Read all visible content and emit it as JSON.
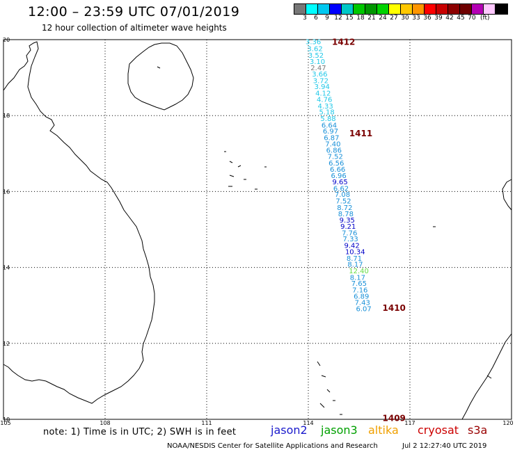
{
  "title": "12:00 – 23:59 UTC 07/01/2019",
  "subtitle": "12 hour collection of altimeter wave heights",
  "legend": {
    "colors": [
      "#777777",
      "#00ffff",
      "#00c8f0",
      "#0000ff",
      "#00c8c8",
      "#00c800",
      "#009600",
      "#00d200",
      "#ffff00",
      "#ffc800",
      "#ff9600",
      "#ff0000",
      "#c80000",
      "#8c0000",
      "#6e0000",
      "#b400b4",
      "#ffc8ff",
      "#000000"
    ],
    "labels": [
      "3",
      "6",
      "9",
      "12",
      "15",
      "18",
      "21",
      "24",
      "27",
      "30",
      "33",
      "36",
      "39",
      "42",
      "45",
      "70"
    ],
    "unit": "(ft)"
  },
  "axes": {
    "lon_labels": [
      "105",
      "108",
      "111",
      "114",
      "117",
      "120"
    ],
    "lat_labels": [
      "20",
      "18",
      "16",
      "14",
      "12",
      "10"
    ]
  },
  "passes": [
    {
      "id": "1412",
      "lat": 19.95
    },
    {
      "id": "1411",
      "lat": 17.55
    },
    {
      "id": "1410",
      "lat": 12.95
    },
    {
      "id": "1409",
      "lat": 10.05
    }
  ],
  "wave_heights": [
    {
      "lon": 114.0,
      "lat": 19.95,
      "value": "3.36",
      "color": "#20c8e8"
    },
    {
      "lon": 114.05,
      "lat": 19.77,
      "value": "3.62",
      "color": "#20c8e8"
    },
    {
      "lon": 114.08,
      "lat": 19.6,
      "value": "3.52",
      "color": "#20c8e8"
    },
    {
      "lon": 114.12,
      "lat": 19.43,
      "value": "3.10",
      "color": "#20c8e8"
    },
    {
      "lon": 114.15,
      "lat": 19.27,
      "value": "2.47",
      "color": "#777777"
    },
    {
      "lon": 114.19,
      "lat": 19.1,
      "value": "3.66",
      "color": "#20c8e8"
    },
    {
      "lon": 114.22,
      "lat": 18.93,
      "value": "3.72",
      "color": "#20c8e8"
    },
    {
      "lon": 114.26,
      "lat": 18.77,
      "value": "3.94",
      "color": "#20c8e8"
    },
    {
      "lon": 114.29,
      "lat": 18.6,
      "value": "4.12",
      "color": "#20c8e8"
    },
    {
      "lon": 114.33,
      "lat": 18.43,
      "value": "4.76",
      "color": "#20c8e8"
    },
    {
      "lon": 114.36,
      "lat": 18.26,
      "value": "4.33",
      "color": "#20c8e8"
    },
    {
      "lon": 114.4,
      "lat": 18.1,
      "value": "5.18",
      "color": "#20c8e8"
    },
    {
      "lon": 114.44,
      "lat": 17.93,
      "value": "5.88",
      "color": "#20c8e8"
    },
    {
      "lon": 114.47,
      "lat": 17.76,
      "value": "6.64",
      "color": "#1890d8"
    },
    {
      "lon": 114.51,
      "lat": 17.6,
      "value": "6.97",
      "color": "#1890d8"
    },
    {
      "lon": 114.54,
      "lat": 17.43,
      "value": "6.87",
      "color": "#1890d8"
    },
    {
      "lon": 114.58,
      "lat": 17.26,
      "value": "7.40",
      "color": "#1890d8"
    },
    {
      "lon": 114.61,
      "lat": 17.1,
      "value": "6.86",
      "color": "#1890d8"
    },
    {
      "lon": 114.65,
      "lat": 16.93,
      "value": "7.52",
      "color": "#1890d8"
    },
    {
      "lon": 114.68,
      "lat": 16.76,
      "value": "6.56",
      "color": "#1890d8"
    },
    {
      "lon": 114.72,
      "lat": 16.59,
      "value": "6.66",
      "color": "#1890d8"
    },
    {
      "lon": 114.75,
      "lat": 16.43,
      "value": "6.96",
      "color": "#1890d8"
    },
    {
      "lon": 114.79,
      "lat": 16.26,
      "value": "9.65",
      "color": "#0000c8"
    },
    {
      "lon": 114.82,
      "lat": 16.09,
      "value": "6.62",
      "color": "#1890d8"
    },
    {
      "lon": 114.86,
      "lat": 15.93,
      "value": "7.08",
      "color": "#1890d8"
    },
    {
      "lon": 114.89,
      "lat": 15.76,
      "value": "7.52",
      "color": "#1890d8"
    },
    {
      "lon": 114.93,
      "lat": 15.59,
      "value": "8.72",
      "color": "#1890d8"
    },
    {
      "lon": 114.96,
      "lat": 15.42,
      "value": "8.78",
      "color": "#1890d8"
    },
    {
      "lon": 115.0,
      "lat": 15.26,
      "value": "9.35",
      "color": "#0000c8"
    },
    {
      "lon": 115.03,
      "lat": 15.09,
      "value": "9.21",
      "color": "#0000c8"
    },
    {
      "lon": 115.07,
      "lat": 14.92,
      "value": "7.76",
      "color": "#1890d8"
    },
    {
      "lon": 115.1,
      "lat": 14.76,
      "value": "7.33",
      "color": "#1890d8"
    },
    {
      "lon": 115.14,
      "lat": 14.59,
      "value": "9.42",
      "color": "#0000c8"
    },
    {
      "lon": 115.17,
      "lat": 14.42,
      "value": "10.34",
      "color": "#0000c8"
    },
    {
      "lon": 115.21,
      "lat": 14.25,
      "value": "8.71",
      "color": "#1890d8"
    },
    {
      "lon": 115.24,
      "lat": 14.09,
      "value": "8.17",
      "color": "#1890d8"
    },
    {
      "lon": 115.28,
      "lat": 13.92,
      "value": "12.40",
      "color": "#66dd44"
    },
    {
      "lon": 115.31,
      "lat": 13.75,
      "value": "8.17",
      "color": "#1890d8"
    },
    {
      "lon": 115.35,
      "lat": 13.59,
      "value": "7.65",
      "color": "#1890d8"
    },
    {
      "lon": 115.38,
      "lat": 13.42,
      "value": "7.16",
      "color": "#1890d8"
    },
    {
      "lon": 115.42,
      "lat": 13.25,
      "value": "6.89",
      "color": "#1890d8"
    },
    {
      "lon": 115.45,
      "lat": 13.09,
      "value": "7.43",
      "color": "#1890d8"
    },
    {
      "lon": 115.49,
      "lat": 12.92,
      "value": "6.07",
      "color": "#1890d8"
    }
  ],
  "note": "note: 1) Time is in UTC; 2) SWH is in feet",
  "missions": [
    {
      "name": "jason2",
      "color": "#1a1acc"
    },
    {
      "name": "jason3",
      "color": "#00a000"
    },
    {
      "name": "altika",
      "color": "#f0a000"
    },
    {
      "name": "cryosat",
      "color": "#cc0000"
    },
    {
      "name": "s3a",
      "color": "#990000"
    }
  ],
  "credit": "NOAA/NESDIS Center for Satellite Applications and Research",
  "generated": "Jul  2 12:27:40 UTC 2019"
}
